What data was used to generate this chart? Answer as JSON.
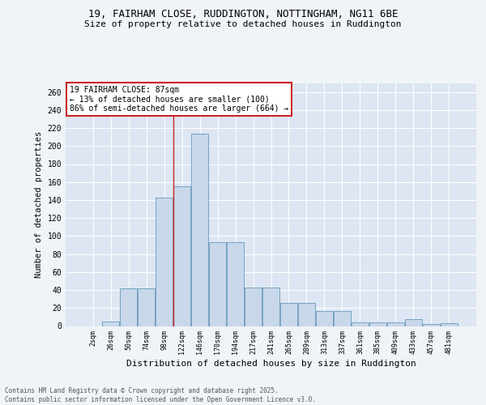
{
  "title_line1": "19, FAIRHAM CLOSE, RUDDINGTON, NOTTINGHAM, NG11 6BE",
  "title_line2": "Size of property relative to detached houses in Ruddington",
  "xlabel": "Distribution of detached houses by size in Ruddington",
  "ylabel": "Number of detached properties",
  "bar_color": "#c8d8ea",
  "bar_edge_color": "#6699bb",
  "bg_color": "#dde6f2",
  "grid_color": "#ffffff",
  "categories": [
    "2sqm",
    "26sqm",
    "50sqm",
    "74sqm",
    "98sqm",
    "122sqm",
    "146sqm",
    "170sqm",
    "194sqm",
    "217sqm",
    "241sqm",
    "265sqm",
    "289sqm",
    "313sqm",
    "337sqm",
    "361sqm",
    "385sqm",
    "409sqm",
    "433sqm",
    "457sqm",
    "481sqm"
  ],
  "bar_values": [
    0,
    5,
    42,
    42,
    143,
    155,
    214,
    93,
    93,
    43,
    43,
    26,
    26,
    17,
    17,
    4,
    4,
    4,
    8,
    2,
    3
  ],
  "ylim": [
    0,
    270
  ],
  "yticks": [
    0,
    20,
    40,
    60,
    80,
    100,
    120,
    140,
    160,
    180,
    200,
    220,
    240,
    260
  ],
  "annotation_text": "19 FAIRHAM CLOSE: 87sqm\n← 13% of detached houses are smaller (100)\n86% of semi-detached houses are larger (664) →",
  "vline_x": 4.5,
  "footer_line1": "Contains HM Land Registry data © Crown copyright and database right 2025.",
  "footer_line2": "Contains public sector information licensed under the Open Government Licence v3.0.",
  "fig_bg": "#f0f4f8"
}
